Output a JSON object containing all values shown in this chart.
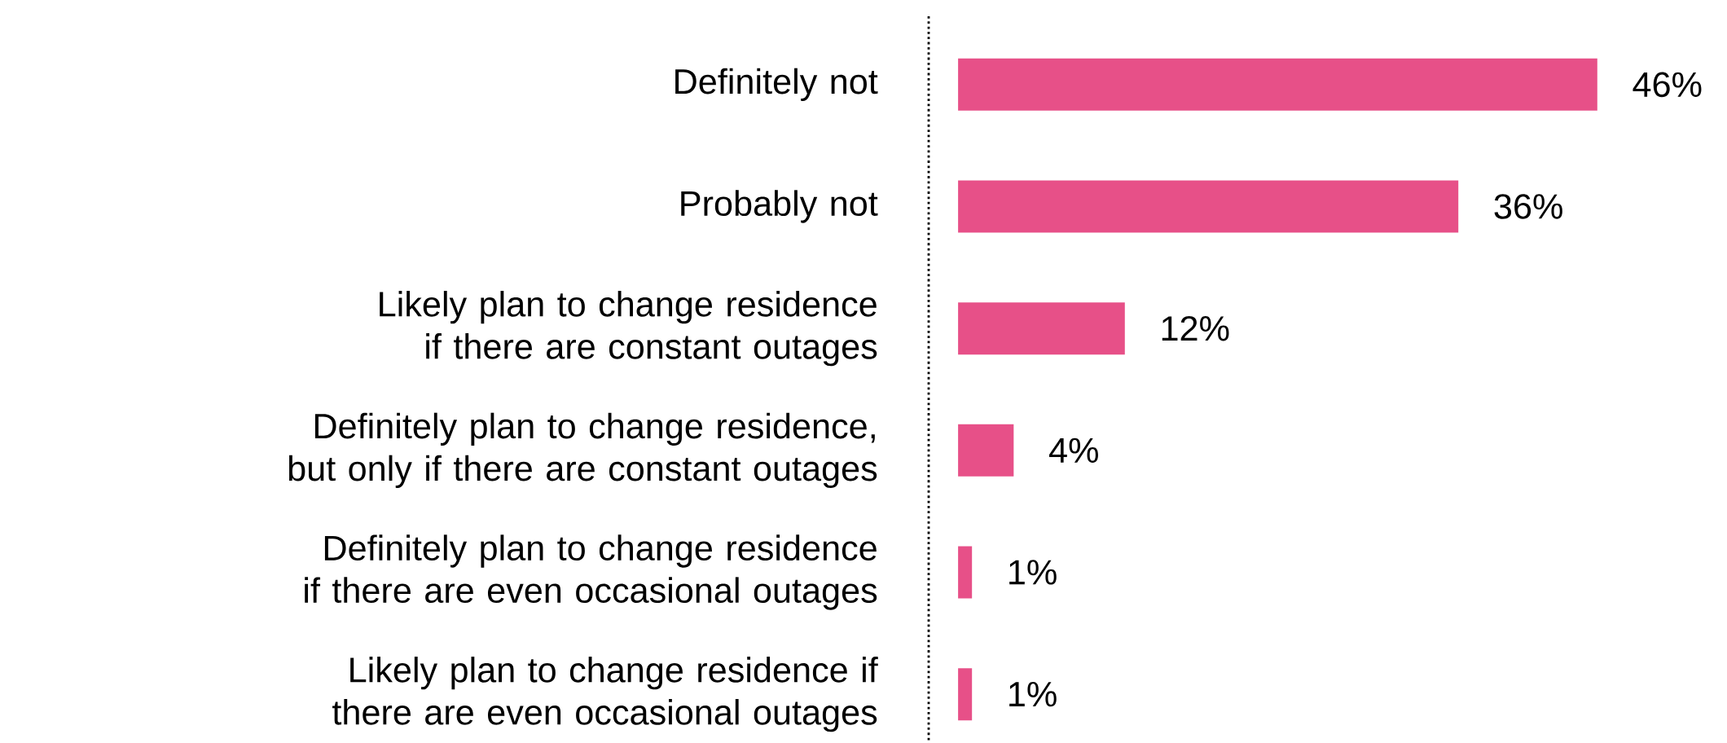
{
  "chart_data": {
    "type": "bar",
    "orientation": "horizontal",
    "categories": [
      "Definitely not",
      "Probably not",
      "Likely plan to change residence if there are constant outages",
      "Definitely plan to change residence, but only if there are constant outages",
      "Definitely plan to change residence if there are even occasional outages",
      "Likely plan to change residence if there are even occasional outages"
    ],
    "values": [
      46,
      36,
      12,
      4,
      1,
      1
    ],
    "value_labels": [
      "46%",
      "36%",
      "12%",
      "4%",
      "1%",
      "1%"
    ],
    "color": "#e75088"
  }
}
